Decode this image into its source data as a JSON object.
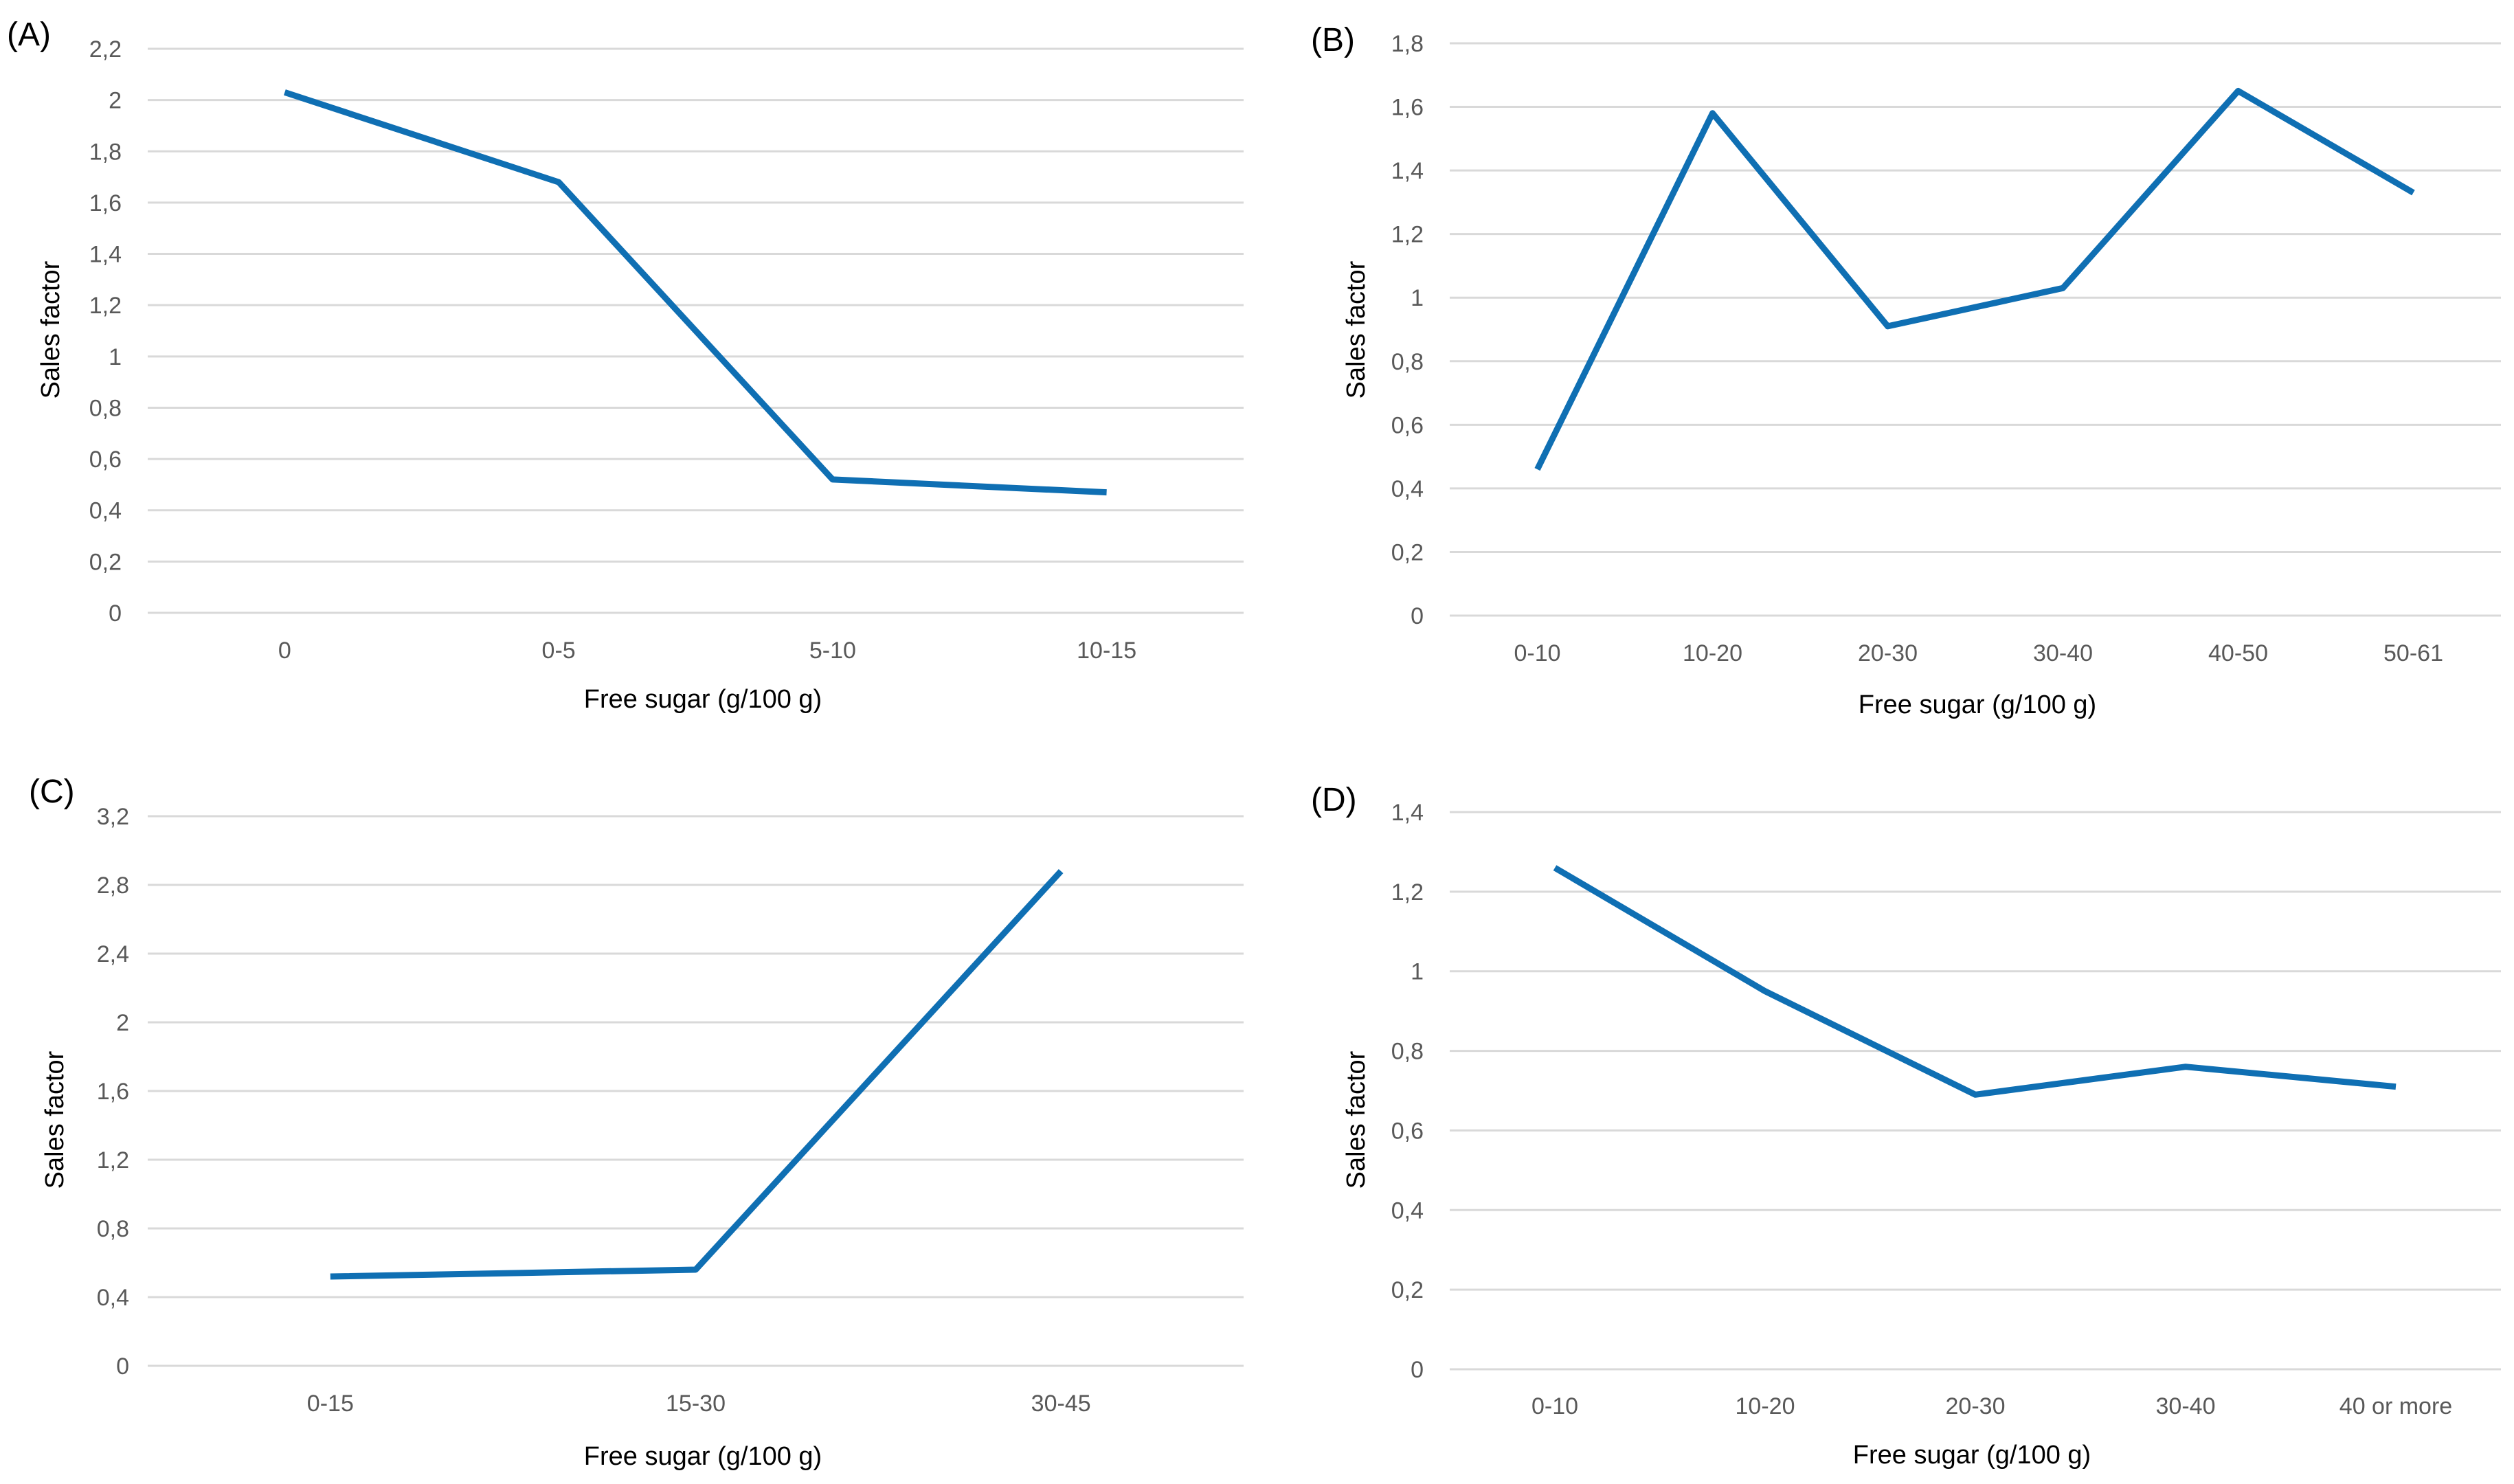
{
  "chart_data": [
    {
      "type": "line",
      "panel_label": "(A)",
      "xlabel": "Free sugar (g/100 g)",
      "ylabel": "Sales factor",
      "categories": [
        "0",
        "0-5",
        "5-10",
        "10-15"
      ],
      "values": [
        2.03,
        1.68,
        0.52,
        0.47
      ],
      "ylim": [
        0,
        2.2
      ],
      "y_ticks": [
        "0",
        "0,2",
        "0,4",
        "0,6",
        "0,8",
        "1",
        "1,2",
        "1,4",
        "1,6",
        "1,8",
        "2",
        "2,2"
      ],
      "grid": true,
      "color": "#0f6fb3"
    },
    {
      "type": "line",
      "panel_label": "(B)",
      "xlabel": "Free sugar (g/100 g)",
      "ylabel": "Sales factor",
      "categories": [
        "0-10",
        "10-20",
        "20-30",
        "30-40",
        "40-50",
        "50-61"
      ],
      "values": [
        0.46,
        1.58,
        0.91,
        1.03,
        1.65,
        1.33
      ],
      "ylim": [
        0,
        1.8
      ],
      "y_ticks": [
        "0",
        "0,2",
        "0,4",
        "0,6",
        "0,8",
        "1",
        "1,2",
        "1,4",
        "1,6",
        "1,8"
      ],
      "grid": true,
      "color": "#0f6fb3"
    },
    {
      "type": "line",
      "panel_label": "(C)",
      "xlabel": "Free sugar (g/100 g)",
      "ylabel": "Sales factor",
      "categories": [
        "0-15",
        "15-30",
        "30-45"
      ],
      "values": [
        0.52,
        0.56,
        2.88
      ],
      "ylim": [
        0,
        3.2
      ],
      "y_ticks": [
        "0",
        "0,4",
        "0,8",
        "1,2",
        "1,6",
        "2",
        "2,4",
        "2,8",
        "3,2"
      ],
      "grid": true,
      "color": "#0f6fb3"
    },
    {
      "type": "line",
      "panel_label": "(D)",
      "xlabel": "Free sugar (g/100 g)",
      "ylabel": "Sales factor",
      "categories": [
        "0-10",
        "10-20",
        "20-30",
        "30-40",
        "40 or more"
      ],
      "values": [
        1.26,
        0.95,
        0.69,
        0.76,
        0.71
      ],
      "ylim": [
        0,
        1.4
      ],
      "y_ticks": [
        "0",
        "0,2",
        "0,4",
        "0,6",
        "0,8",
        "1",
        "1,2",
        "1,4"
      ],
      "grid": true,
      "color": "#0f6fb3"
    }
  ]
}
